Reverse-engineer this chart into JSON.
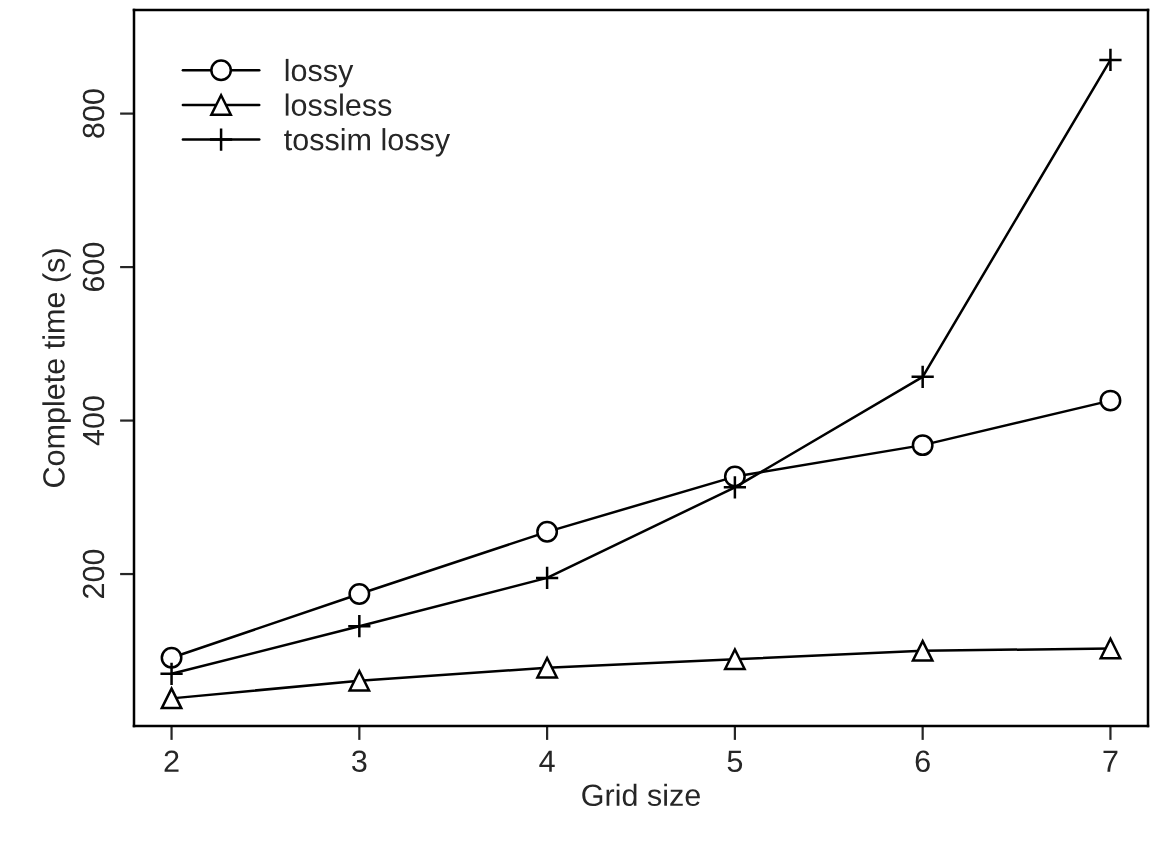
{
  "chart_data": {
    "type": "line",
    "xlabel": "Grid size",
    "ylabel": "Complete time (s)",
    "x": [
      2,
      3,
      4,
      5,
      6,
      7
    ],
    "series": [
      {
        "name": "lossy",
        "color": "#000000",
        "marker": "circle",
        "values": [
          91,
          174,
          255,
          327,
          368,
          426
        ]
      },
      {
        "name": "lossless",
        "color": "#000000",
        "marker": "triangle",
        "values": [
          38,
          61,
          78,
          89,
          100,
          103
        ]
      },
      {
        "name": "tossim lossy",
        "color": "#000000",
        "marker": "cross",
        "values": [
          70,
          132,
          195,
          313,
          457,
          870
        ]
      }
    ],
    "xlim": [
      1.8,
      7.2
    ],
    "ylim": [
      2,
      935
    ],
    "xticks": [
      2,
      3,
      4,
      5,
      6,
      7
    ],
    "yticks": [
      200,
      400,
      600,
      800
    ],
    "grid": false,
    "legend": "top left"
  }
}
